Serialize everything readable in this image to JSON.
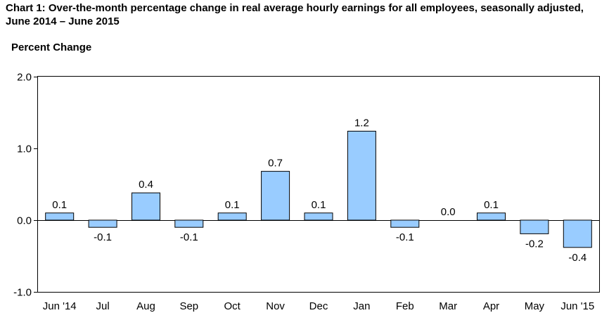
{
  "chart_data": {
    "type": "bar",
    "title": "Chart 1: Over-the-month percentage change in real average hourly earnings for all employees, seasonally adjusted, June 2014 – June 2015",
    "ylabel": "Percent Change",
    "xlabel": "",
    "categories": [
      "Jun '14",
      "Jul",
      "Aug",
      "Sep",
      "Oct",
      "Nov",
      "Dec",
      "Jan",
      "Feb",
      "Mar",
      "Apr",
      "May",
      "Jun '15"
    ],
    "values": [
      0.1,
      -0.1,
      0.38,
      -0.1,
      0.1,
      0.68,
      0.1,
      1.24,
      -0.1,
      0.0,
      0.1,
      -0.19,
      -0.38
    ],
    "data_labels": [
      "0.1",
      "-0.1",
      "0.4",
      "-0.1",
      "0.1",
      "0.7",
      "0.1",
      "1.2",
      "-0.1",
      "0.0",
      "0.1",
      "-0.2",
      "-0.4"
    ],
    "ylim": [
      -1.0,
      2.0
    ],
    "yticks": [
      2.0,
      1.0,
      0.0,
      -1.0
    ],
    "ytick_labels": [
      "2.0",
      "1.0",
      "0.0",
      "-1.0"
    ],
    "grid": false,
    "legend": "none",
    "bar_color": "#99CCFF",
    "bar_edge_color": "#000000"
  }
}
